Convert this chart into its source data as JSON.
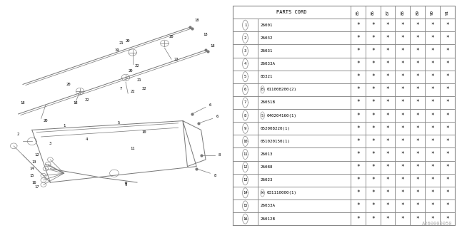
{
  "title": "A260000050",
  "bg_color": "#ffffff",
  "col_headers": [
    "85",
    "86",
    "87",
    "88",
    "89",
    "90",
    "91"
  ],
  "rows": [
    [
      "1",
      "26001",
      true
    ],
    [
      "2",
      "26032",
      true
    ],
    [
      "3",
      "26031",
      true
    ],
    [
      "4",
      "26033A",
      true
    ],
    [
      "5",
      "83321",
      true
    ],
    [
      "6",
      "B011008200(2)",
      true
    ],
    [
      "7",
      "26051B",
      true
    ],
    [
      "8",
      "S040204160(1)",
      true
    ],
    [
      "9",
      "052008220(1)",
      true
    ],
    [
      "10",
      "051020150(1)",
      true
    ],
    [
      "11",
      "26013",
      true
    ],
    [
      "12",
      "26088",
      true
    ],
    [
      "13",
      "26023",
      true
    ],
    [
      "14",
      "W031110000(1)",
      true
    ],
    [
      "15",
      "26033A",
      true
    ],
    [
      "16",
      "26012B",
      true
    ]
  ],
  "special_prefix": {
    "6": "B",
    "8": "S",
    "14": "W"
  },
  "font_color": "#000000",
  "line_color": "#777777",
  "diagram_bg": "#ffffff"
}
